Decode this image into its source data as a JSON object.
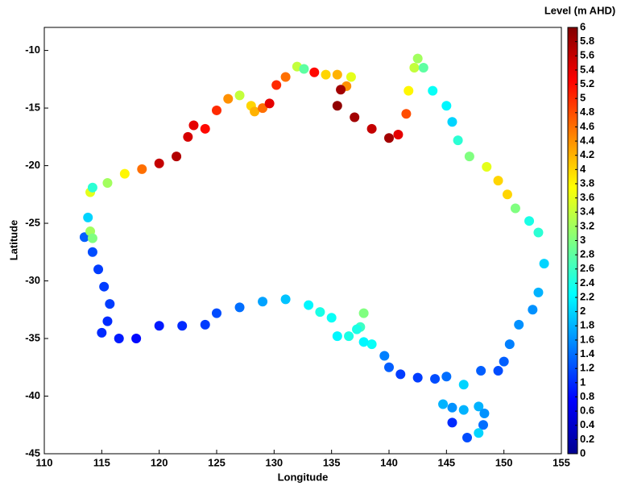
{
  "chart_data": {
    "type": "scatter",
    "xlabel": "Longitude",
    "ylabel": "Latitude",
    "colorbar_label": "Level (m AHD)",
    "colormap": "jet",
    "xlim": [
      110,
      155
    ],
    "xticks": [
      110,
      115,
      120,
      125,
      130,
      135,
      140,
      145,
      150,
      155
    ],
    "ylim": [
      -45,
      -8
    ],
    "yticks": [
      -45,
      -40,
      -35,
      -30,
      -25,
      -20,
      -15,
      -10
    ],
    "clim": [
      0,
      6
    ],
    "cticks": [
      0,
      0.2,
      0.4,
      0.6,
      0.8,
      1,
      1.2,
      1.4,
      1.6,
      1.8,
      2,
      2.2,
      2.4,
      2.6,
      2.8,
      3,
      3.2,
      3.4,
      3.6,
      3.8,
      4,
      4.2,
      4.4,
      4.6,
      4.8,
      5,
      5.2,
      5.4,
      5.6,
      5.8,
      6
    ],
    "x": [
      113.5,
      113.8,
      114,
      114.2,
      114,
      114.2,
      115.5,
      117,
      118.5,
      120,
      121.5,
      122.5,
      123,
      124,
      125,
      126,
      127,
      128,
      128.3,
      129,
      129.6,
      130.2,
      131,
      132,
      132.6,
      133.5,
      134.5,
      135.5,
      136.7,
      136.3,
      135.8,
      135.5,
      137,
      138.5,
      140,
      140.8,
      141.5,
      141.7,
      142.2,
      142.5,
      143,
      143.8,
      145,
      145.5,
      146,
      147,
      148.5,
      149.5,
      150.3,
      151,
      152.2,
      153,
      153.5,
      153,
      152.5,
      151.3,
      150.5,
      150,
      149.5,
      148,
      146.5,
      145,
      144,
      142.5,
      141,
      140,
      139.6,
      138.5,
      137.8,
      137.5,
      137.8,
      137.2,
      136.5,
      135.5,
      135,
      134,
      133,
      131,
      129,
      127,
      125,
      124,
      122,
      120,
      118,
      116.5,
      115,
      115.5,
      115.7,
      115.2,
      114.7,
      114.2,
      144.7,
      145.5,
      146.5,
      147.8,
      148.3,
      148.2,
      147.8,
      146.8,
      145.5
    ],
    "y": [
      -26.2,
      -24.5,
      -25.7,
      -26.3,
      -22.3,
      -21.9,
      -21.5,
      -20.7,
      -20.3,
      -19.8,
      -19.2,
      -17.5,
      -16.5,
      -16.8,
      -15.2,
      -14.2,
      -13.9,
      -14.8,
      -15.3,
      -15,
      -14.6,
      -13,
      -12.3,
      -11.4,
      -11.6,
      -11.9,
      -12.1,
      -12.1,
      -12.3,
      -13.1,
      -13.4,
      -14.8,
      -15.8,
      -16.8,
      -17.6,
      -17.3,
      -15.5,
      -13.5,
      -11.5,
      -10.7,
      -11.5,
      -13.5,
      -14.8,
      -16.2,
      -17.8,
      -19.2,
      -20.1,
      -21.3,
      -22.5,
      -23.7,
      -24.8,
      -25.8,
      -28.5,
      -31,
      -32.5,
      -33.8,
      -35.5,
      -37,
      -37.8,
      -37.8,
      -39,
      -38.3,
      -38.5,
      -38.4,
      -38.1,
      -37.5,
      -36.5,
      -35.5,
      -35.3,
      -34,
      -32.8,
      -34.2,
      -34.8,
      -34.8,
      -33.2,
      -32.7,
      -32.1,
      -31.6,
      -31.8,
      -32.3,
      -32.8,
      -33.8,
      -33.9,
      -33.9,
      -35,
      -35,
      -34.5,
      -33.5,
      -32,
      -30.5,
      -29,
      -27.5,
      -40.7,
      -41,
      -41.2,
      -40.9,
      -41.5,
      -42.5,
      -43.2,
      -43.6,
      -42.3
    ],
    "values": [
      1.3,
      2.0,
      3.2,
      3.0,
      3.6,
      2.5,
      3.2,
      3.8,
      4.6,
      5.6,
      5.7,
      5.5,
      5.4,
      5.2,
      5.0,
      4.4,
      3.4,
      4.0,
      4.2,
      4.6,
      5.4,
      5.0,
      4.6,
      3.4,
      2.8,
      5.2,
      4.0,
      4.2,
      3.6,
      4.4,
      5.8,
      5.9,
      5.8,
      5.6,
      5.8,
      5.4,
      4.8,
      3.8,
      3.4,
      3.2,
      2.8,
      2.3,
      2.2,
      2.0,
      2.5,
      3.0,
      3.6,
      4.0,
      4.0,
      3.0,
      2.4,
      2.5,
      2.0,
      1.8,
      1.6,
      1.6,
      1.5,
      1.3,
      1.2,
      1.3,
      2.0,
      1.4,
      1.2,
      1.1,
      1.1,
      1.3,
      1.5,
      2.3,
      2.2,
      2.6,
      3.0,
      2.4,
      2.4,
      2.2,
      2.3,
      2.4,
      2.2,
      1.9,
      1.7,
      1.4,
      1.2,
      1.1,
      1.0,
      0.9,
      0.8,
      0.9,
      1.0,
      1.0,
      1.1,
      1.1,
      1.1,
      1.2,
      1.8,
      1.6,
      1.8,
      1.8,
      1.6,
      1.4,
      2.0,
      1.2,
      1.0
    ]
  }
}
